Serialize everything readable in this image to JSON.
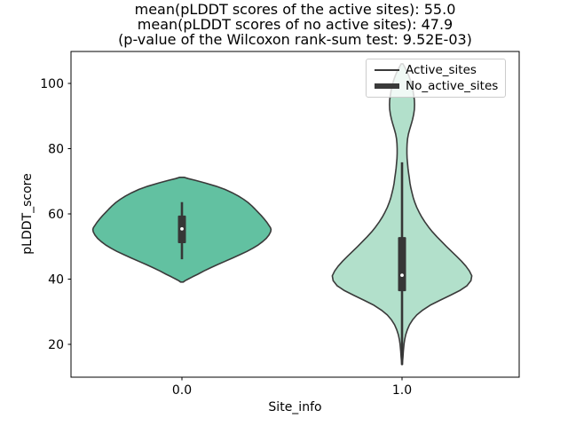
{
  "title": {
    "line1": "mean(pLDDT scores of the active sites): 55.0",
    "line2": "mean(pLDDT scores of no active sites): 47.9",
    "line3": "(p-value of the Wilcoxon rank-sum test: 9.52E-03)"
  },
  "legend": {
    "items": [
      {
        "label": "Active_sites",
        "swatch": "thin-line"
      },
      {
        "label": "No_active_sites",
        "swatch": "thick-line"
      }
    ]
  },
  "axes": {
    "xlabel": "Site_info",
    "ylabel": "pLDDT_score",
    "x_tick_labels": [
      "0.0",
      "1.0"
    ],
    "x_tick_positions": [
      0,
      1
    ],
    "y_tick_labels": [
      "20",
      "40",
      "60",
      "80",
      "100"
    ],
    "y_tick_values": [
      20,
      40,
      60,
      80,
      100
    ]
  },
  "colors": {
    "violin_active": "#62c1a1",
    "violin_no_active": "#b2e0cb",
    "violin_edge": "#3a3a3a",
    "inner_box": "#363636",
    "median_dot": "#ffffff",
    "legend_line": "#3a3a3a",
    "legend_border": "#cccccc",
    "text": "#000000"
  },
  "chart_data": {
    "type": "violin",
    "title_lines": [
      "mean(pLDDT scores of the active sites): 55.0",
      "mean(pLDDT scores of no active sites): 47.9",
      "(p-value of the Wilcoxon rank-sum test: 9.52E-03)"
    ],
    "xlabel": "Site_info",
    "ylabel": "pLDDT_score",
    "categories": [
      "0.0",
      "1.0"
    ],
    "xlim": [
      -0.5,
      1.5
    ],
    "ylim": [
      10,
      110
    ],
    "grid": false,
    "legend_position": "upper right",
    "annotations": {
      "test": "Wilcoxon rank-sum",
      "p_value": "9.52E-03"
    },
    "series": [
      {
        "name": "Active_sites",
        "category": "0.0",
        "x": 0,
        "mean": 55.0,
        "fill": "#62c1a1",
        "span": [
          39.1,
          71.2
        ],
        "box": {
          "whisker_low": 46.1,
          "whisker_high": 63.6,
          "q1": 51.0,
          "q3": 59.5,
          "median": 55.4
        },
        "profile": [
          [
            71.2,
            0.01
          ],
          [
            70.8,
            0.03
          ],
          [
            70.3,
            0.06
          ],
          [
            69.5,
            0.105
          ],
          [
            68.5,
            0.155
          ],
          [
            67.5,
            0.195
          ],
          [
            66.5,
            0.228
          ],
          [
            65.5,
            0.256
          ],
          [
            64.5,
            0.28
          ],
          [
            63.5,
            0.3
          ],
          [
            62.5,
            0.317
          ],
          [
            61.5,
            0.332
          ],
          [
            60.5,
            0.346
          ],
          [
            59.5,
            0.36
          ],
          [
            58.5,
            0.373
          ],
          [
            57.5,
            0.385
          ],
          [
            56.5,
            0.395
          ],
          [
            55.8,
            0.402
          ],
          [
            55.2,
            0.405
          ],
          [
            54.5,
            0.403
          ],
          [
            53.5,
            0.395
          ],
          [
            52.5,
            0.383
          ],
          [
            51.5,
            0.367
          ],
          [
            50.5,
            0.347
          ],
          [
            49.5,
            0.323
          ],
          [
            48.5,
            0.295
          ],
          [
            47.5,
            0.264
          ],
          [
            46.5,
            0.231
          ],
          [
            45.5,
            0.197
          ],
          [
            44.5,
            0.163
          ],
          [
            43.5,
            0.131
          ],
          [
            42.5,
            0.1
          ],
          [
            41.5,
            0.072
          ],
          [
            40.7,
            0.048
          ],
          [
            40.0,
            0.028
          ],
          [
            39.5,
            0.014
          ],
          [
            39.1,
            0.006
          ]
        ]
      },
      {
        "name": "No_active_sites",
        "category": "1.0",
        "x": 1,
        "mean": 47.9,
        "fill": "#b2e0cb",
        "span": [
          13.8,
          106.0
        ],
        "box": {
          "whisker_low": 13.7,
          "whisker_high": 75.8,
          "q1": 36.3,
          "q3": 52.9,
          "median": 41.2
        },
        "profile": [
          [
            106.0,
            0.004
          ],
          [
            105.0,
            0.012
          ],
          [
            104.0,
            0.02
          ],
          [
            102.5,
            0.03
          ],
          [
            101.0,
            0.038
          ],
          [
            99.5,
            0.044
          ],
          [
            98.0,
            0.049
          ],
          [
            96.5,
            0.053
          ],
          [
            95.0,
            0.056
          ],
          [
            93.5,
            0.057
          ],
          [
            92.0,
            0.056
          ],
          [
            90.5,
            0.053
          ],
          [
            89.0,
            0.048
          ],
          [
            87.5,
            0.042
          ],
          [
            86.0,
            0.035
          ],
          [
            84.5,
            0.029
          ],
          [
            83.0,
            0.025
          ],
          [
            81.5,
            0.023
          ],
          [
            80.0,
            0.022
          ],
          [
            78.5,
            0.022
          ],
          [
            77.0,
            0.023
          ],
          [
            75.5,
            0.025
          ],
          [
            74.0,
            0.027
          ],
          [
            72.5,
            0.03
          ],
          [
            71.0,
            0.033
          ],
          [
            69.5,
            0.036
          ],
          [
            68.0,
            0.04
          ],
          [
            66.5,
            0.045
          ],
          [
            65.0,
            0.051
          ],
          [
            63.5,
            0.058
          ],
          [
            62.0,
            0.067
          ],
          [
            60.5,
            0.078
          ],
          [
            59.0,
            0.09
          ],
          [
            57.5,
            0.104
          ],
          [
            56.0,
            0.12
          ],
          [
            54.5,
            0.138
          ],
          [
            53.0,
            0.158
          ],
          [
            51.5,
            0.18
          ],
          [
            50.0,
            0.202
          ],
          [
            48.5,
            0.225
          ],
          [
            47.0,
            0.248
          ],
          [
            45.5,
            0.27
          ],
          [
            44.0,
            0.29
          ],
          [
            42.5,
            0.306
          ],
          [
            41.0,
            0.317
          ],
          [
            39.5,
            0.313
          ],
          [
            38.0,
            0.295
          ],
          [
            36.5,
            0.262
          ],
          [
            35.0,
            0.218
          ],
          [
            33.5,
            0.172
          ],
          [
            32.0,
            0.128
          ],
          [
            30.5,
            0.094
          ],
          [
            29.0,
            0.067
          ],
          [
            27.5,
            0.048
          ],
          [
            26.0,
            0.034
          ],
          [
            24.5,
            0.024
          ],
          [
            23.0,
            0.017
          ],
          [
            21.5,
            0.012
          ],
          [
            20.0,
            0.009
          ],
          [
            18.0,
            0.006
          ],
          [
            16.0,
            0.004
          ],
          [
            14.5,
            0.002
          ],
          [
            13.8,
            0.001
          ]
        ]
      }
    ]
  }
}
